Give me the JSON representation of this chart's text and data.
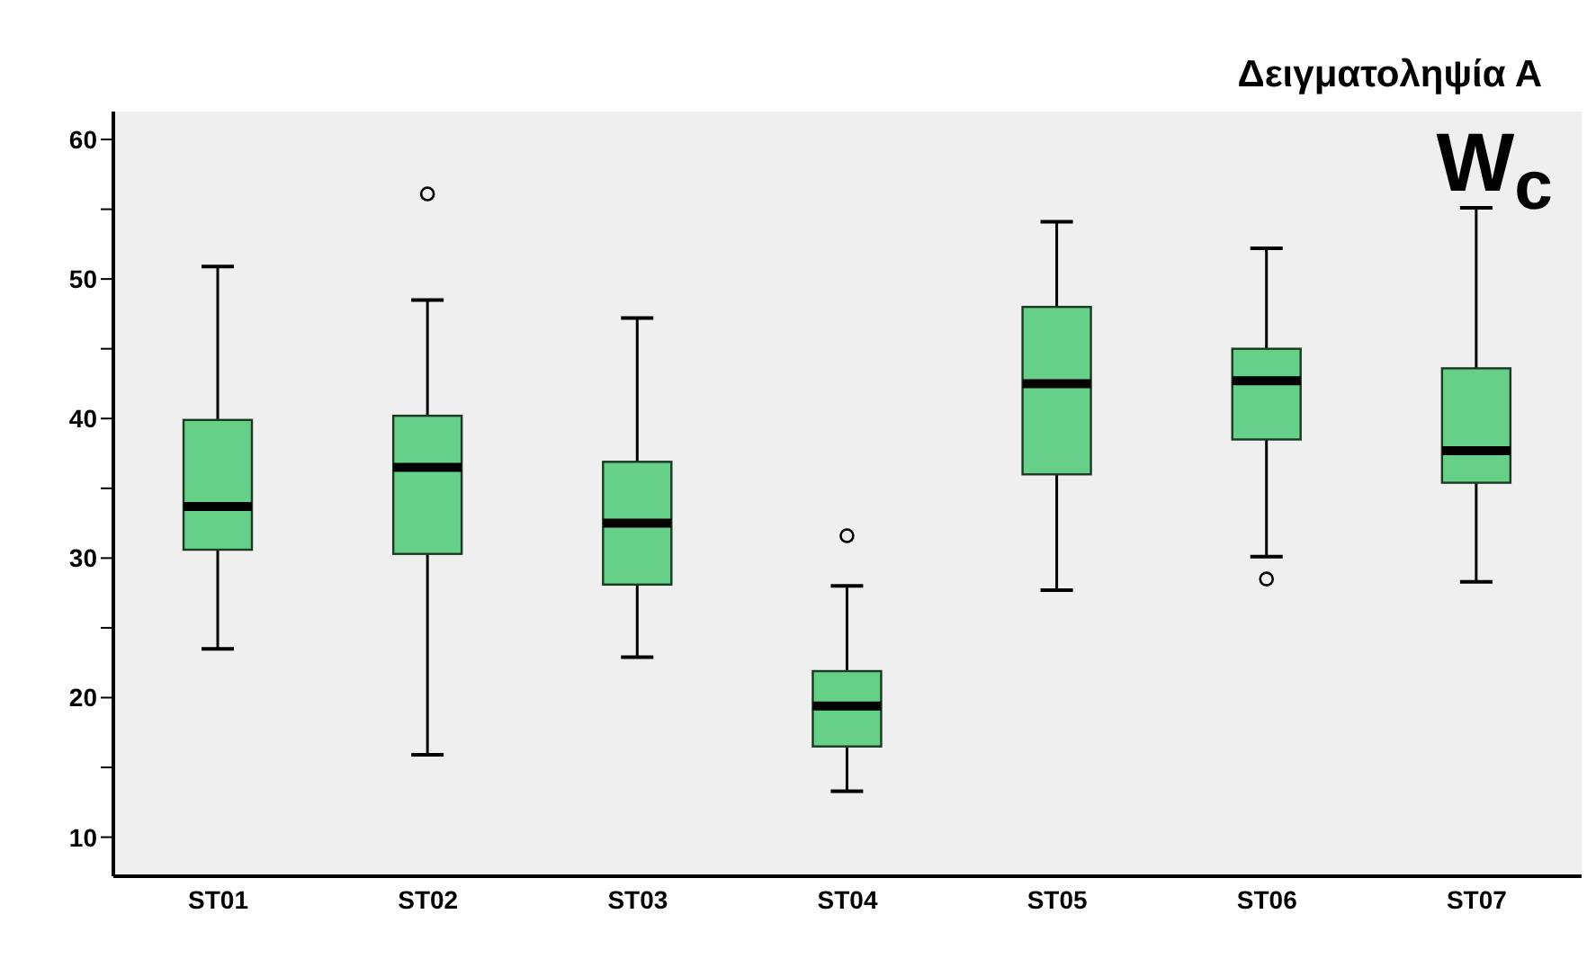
{
  "chart_data": {
    "type": "box",
    "title": "Δειγματοληψία Α",
    "annotations": [
      "W$_{c}$"
    ],
    "categories": [
      "ST01",
      "ST02",
      "ST03",
      "ST04",
      "ST05",
      "ST06",
      "ST07"
    ],
    "color": "#66d088",
    "boxes": [
      {
        "low": 23.5,
        "q1": 30.6,
        "median": 33.7,
        "q3": 39.9,
        "high": 50.9
      },
      {
        "low": 15.9,
        "q1": 30.3,
        "median": 36.5,
        "q3": 40.2,
        "high": 48.5,
        "outliers": [
          56.1
        ]
      },
      {
        "low": 22.9,
        "q1": 28.1,
        "median": 32.5,
        "q3": 36.9,
        "high": 47.2
      },
      {
        "low": 13.3,
        "q1": 16.5,
        "median": 19.4,
        "q3": 21.9,
        "high": 28.0,
        "outliers": [
          31.6
        ]
      },
      {
        "low": 27.7,
        "q1": 36.0,
        "median": 42.5,
        "q3": 48.0,
        "high": 54.1
      },
      {
        "low": 30.1,
        "q1": 38.5,
        "median": 42.7,
        "q3": 45.0,
        "high": 52.2,
        "outliers": [
          28.5
        ]
      },
      {
        "low": 28.3,
        "q1": 35.4,
        "median": 37.7,
        "q3": 43.6,
        "high": 55.1
      }
    ],
    "ylim": [
      7.2,
      62
    ],
    "yticks": [
      10,
      {
        "value": 15,
        "label": null
      },
      20,
      {
        "value": 25,
        "label": null
      },
      30,
      {
        "value": 35,
        "label": null
      },
      40,
      {
        "value": 45,
        "label": null
      },
      50,
      {
        "value": 55,
        "label": null
      },
      60
    ],
    "grid": false
  }
}
